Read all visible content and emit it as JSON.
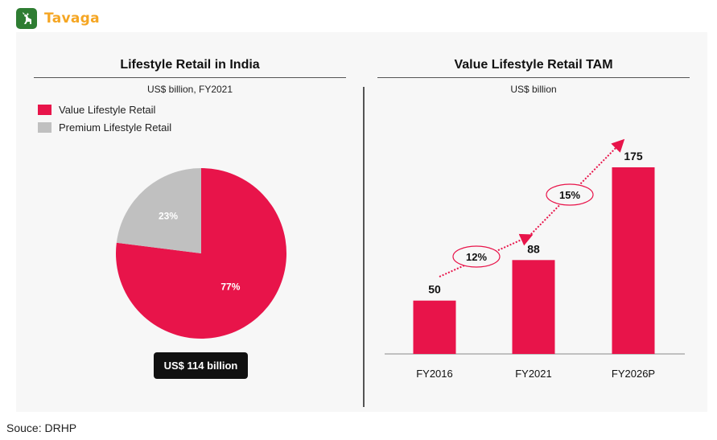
{
  "brand": {
    "name": "Tavaga",
    "icon": "deer-icon"
  },
  "source_note": "Souce: DRHP",
  "colors": {
    "value": "#e8144a",
    "premium": "#c0c0c0",
    "arrow": "#e8144a"
  },
  "chart_data": [
    {
      "type": "pie",
      "title": "Lifestyle Retail in India",
      "subtitle": "US$ billion, FY2021",
      "legend_position": "top-left",
      "slices": [
        {
          "name": "Value Lifestyle Retail",
          "label": "77%",
          "value": 77,
          "color": "#e8144a"
        },
        {
          "name": "Premium Lifestyle Retail",
          "label": "23%",
          "value": 23,
          "color": "#c0c0c0"
        }
      ],
      "total_label": "US$ 114 billion"
    },
    {
      "type": "bar",
      "title": "Value Lifestyle Retail TAM",
      "subtitle": "US$ billion",
      "categories": [
        "FY2016",
        "FY2021",
        "FY2026P"
      ],
      "values": [
        50,
        88,
        175
      ],
      "ylim": [
        0,
        175
      ],
      "color": "#e8144a",
      "growth_labels": [
        "12%",
        "15%"
      ]
    }
  ]
}
